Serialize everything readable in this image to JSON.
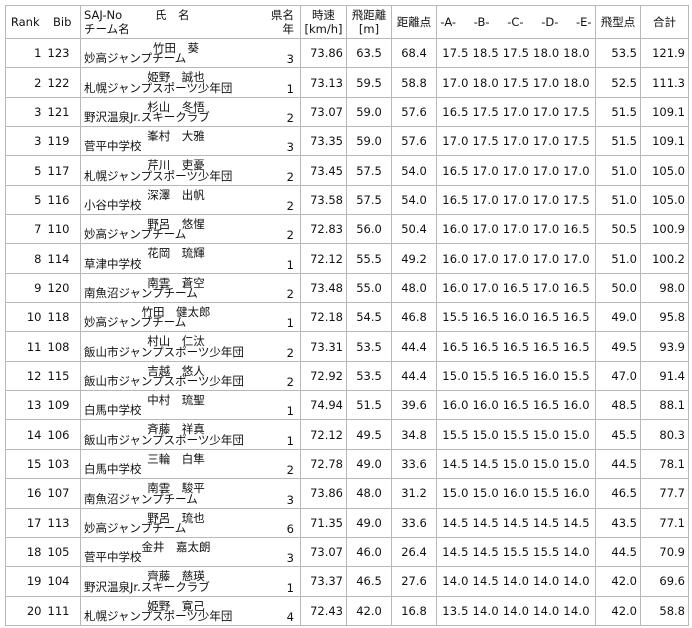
{
  "headers": {
    "rank": "Rank",
    "bib": "Bib",
    "saj": "SAJ-No",
    "name": "氏　名",
    "team": "チーム名",
    "pref": "県名",
    "grade": "年",
    "speed": "時速",
    "speed_unit": "[km/h]",
    "dist": "飛距離",
    "dist_unit": "[m]",
    "dist_pts": "距離点",
    "a": "-A-",
    "b": "-B-",
    "c": "-C-",
    "d": "-D-",
    "e": "-E-",
    "style_pts": "飛型点",
    "total": "合計"
  },
  "rows": [
    {
      "rank": "1",
      "bib": "123",
      "name": "竹田　葵",
      "team": "妙高ジャンプチーム",
      "grade": "3",
      "speed": "73.86",
      "dist": "63.5",
      "dist_pts": "68.4",
      "judges": "17.5 18.5 17.5 18.0 18.0",
      "style": "53.5",
      "total": "121.9"
    },
    {
      "rank": "2",
      "bib": "122",
      "name": "姫野　誠也",
      "team": "札幌ジャンプスポーツ少年団",
      "grade": "1",
      "speed": "73.13",
      "dist": "59.5",
      "dist_pts": "58.8",
      "judges": "17.0 18.0 17.5 17.0 18.0",
      "style": "52.5",
      "total": "111.3"
    },
    {
      "rank": "3",
      "bib": "121",
      "name": "杉山　冬悟",
      "team": "野沢温泉Jr.スキークラブ",
      "grade": "2",
      "speed": "73.07",
      "dist": "59.0",
      "dist_pts": "57.6",
      "judges": "16.5 17.5 17.0 17.0 17.5",
      "style": "51.5",
      "total": "109.1"
    },
    {
      "rank": "3",
      "bib": "119",
      "name": "峯村　大雅",
      "team": "菅平中学校",
      "grade": "3",
      "speed": "73.35",
      "dist": "59.0",
      "dist_pts": "57.6",
      "judges": "17.0 17.5 17.0 17.0 17.5",
      "style": "51.5",
      "total": "109.1"
    },
    {
      "rank": "5",
      "bib": "117",
      "name": "芹川　吏憂",
      "team": "札幌ジャンプスポーツ少年団",
      "grade": "2",
      "speed": "73.45",
      "dist": "57.5",
      "dist_pts": "54.0",
      "judges": "16.5 17.0 17.0 17.0 17.0",
      "style": "51.0",
      "total": "105.0"
    },
    {
      "rank": "5",
      "bib": "116",
      "name": "深澤　出帆",
      "team": "小谷中学校",
      "grade": "2",
      "speed": "73.58",
      "dist": "57.5",
      "dist_pts": "54.0",
      "judges": "16.5 17.0 17.0 17.0 17.5",
      "style": "51.0",
      "total": "105.0"
    },
    {
      "rank": "7",
      "bib": "110",
      "name": "野呂　悠惺",
      "team": "妙高ジャンプチーム",
      "grade": "2",
      "speed": "72.83",
      "dist": "56.0",
      "dist_pts": "50.4",
      "judges": "16.0 17.0 17.0 17.0 16.5",
      "style": "50.5",
      "total": "100.9"
    },
    {
      "rank": "8",
      "bib": "114",
      "name": "花岡　琉輝",
      "team": "草津中学校",
      "grade": "1",
      "speed": "72.12",
      "dist": "55.5",
      "dist_pts": "49.2",
      "judges": "16.0 17.0 17.0 17.0 17.0",
      "style": "51.0",
      "total": "100.2"
    },
    {
      "rank": "9",
      "bib": "120",
      "name": "南雲　蒼空",
      "team": "南魚沼ジャンプチーム",
      "grade": "2",
      "speed": "73.48",
      "dist": "55.0",
      "dist_pts": "48.0",
      "judges": "16.0 17.0 16.5 17.0 16.5",
      "style": "50.0",
      "total": "98.0"
    },
    {
      "rank": "10",
      "bib": "118",
      "name": "竹田　健太郎",
      "team": "妙高ジャンプチーム",
      "grade": "1",
      "speed": "72.18",
      "dist": "54.5",
      "dist_pts": "46.8",
      "judges": "15.5 16.5 16.0 16.5 16.5",
      "style": "49.0",
      "total": "95.8"
    },
    {
      "rank": "11",
      "bib": "108",
      "name": "村山　仁汰",
      "team": "飯山市ジャンプスポーツ少年団",
      "grade": "2",
      "speed": "73.31",
      "dist": "53.5",
      "dist_pts": "44.4",
      "judges": "16.5 16.5 16.5 16.5 16.5",
      "style": "49.5",
      "total": "93.9"
    },
    {
      "rank": "12",
      "bib": "115",
      "name": "吉越　悠人",
      "team": "飯山市ジャンプスポーツ少年団",
      "grade": "2",
      "speed": "72.92",
      "dist": "53.5",
      "dist_pts": "44.4",
      "judges": "15.0 15.5 16.5 16.0 15.5",
      "style": "47.0",
      "total": "91.4"
    },
    {
      "rank": "13",
      "bib": "109",
      "name": "中村　琉聖",
      "team": "白馬中学校",
      "grade": "1",
      "speed": "74.94",
      "dist": "51.5",
      "dist_pts": "39.6",
      "judges": "16.0 16.0 16.5 16.5 16.0",
      "style": "48.5",
      "total": "88.1"
    },
    {
      "rank": "14",
      "bib": "106",
      "name": "斉藤　祥真",
      "team": "飯山市ジャンプスポーツ少年団",
      "grade": "1",
      "speed": "72.12",
      "dist": "49.5",
      "dist_pts": "34.8",
      "judges": "15.5 15.0 15.5 15.0 15.0",
      "style": "45.5",
      "total": "80.3"
    },
    {
      "rank": "15",
      "bib": "103",
      "name": "三輪　白隼",
      "team": "白馬中学校",
      "grade": "2",
      "speed": "72.78",
      "dist": "49.0",
      "dist_pts": "33.6",
      "judges": "14.5 14.5 15.0 15.0 15.0",
      "style": "44.5",
      "total": "78.1"
    },
    {
      "rank": "16",
      "bib": "107",
      "name": "南雲　駿平",
      "team": "南魚沼ジャンプチーム",
      "grade": "3",
      "speed": "73.86",
      "dist": "48.0",
      "dist_pts": "31.2",
      "judges": "15.0 15.0 16.0 15.5 16.0",
      "style": "46.5",
      "total": "77.7"
    },
    {
      "rank": "17",
      "bib": "113",
      "name": "野呂　琉也",
      "team": "妙高ジャンプチーム",
      "grade": "6",
      "speed": "71.35",
      "dist": "49.0",
      "dist_pts": "33.6",
      "judges": "14.5 14.5 14.5 14.5 14.5",
      "style": "43.5",
      "total": "77.1"
    },
    {
      "rank": "18",
      "bib": "105",
      "name": "金井　嘉太朗",
      "team": "菅平中学校",
      "grade": "3",
      "speed": "73.07",
      "dist": "46.0",
      "dist_pts": "26.4",
      "judges": "14.5 14.5 15.5 15.5 14.0",
      "style": "44.5",
      "total": "70.9"
    },
    {
      "rank": "19",
      "bib": "104",
      "name": "齊藤　慈瑛",
      "team": "野沢温泉Jr.スキークラブ",
      "grade": "1",
      "speed": "73.37",
      "dist": "46.5",
      "dist_pts": "27.6",
      "judges": "14.0 14.5 14.0 14.0 14.0",
      "style": "42.0",
      "total": "69.6"
    },
    {
      "rank": "20",
      "bib": "111",
      "name": "姫野　寛己",
      "team": "札幌ジャンプスポーツ少年団",
      "grade": "4",
      "speed": "72.43",
      "dist": "42.0",
      "dist_pts": "16.8",
      "judges": "13.5 14.0 14.0 14.0 14.0",
      "style": "42.0",
      "total": "58.8"
    }
  ]
}
